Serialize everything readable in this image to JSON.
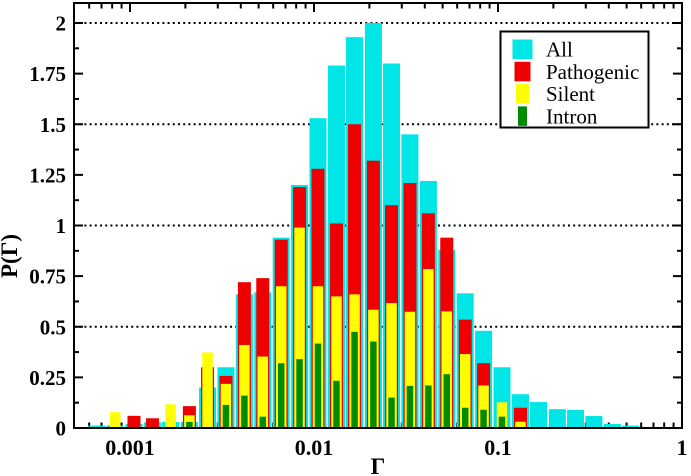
{
  "chart_data": {
    "type": "bar",
    "style": "overlaid-nested-histogram",
    "title": "",
    "xlabel": "Γ",
    "ylabel": "P(Γ)",
    "x_scale": "log",
    "xlim": [
      0.0005,
      1.05
    ],
    "ylim": [
      0,
      2.1
    ],
    "x_tick_values": [
      0.001,
      0.01,
      0.1,
      1
    ],
    "x_tick_labels": [
      "0.001",
      "0.01",
      "0.1",
      "1"
    ],
    "y_tick_values": [
      0,
      0.25,
      0.5,
      0.75,
      1,
      1.25,
      1.5,
      1.75,
      2
    ],
    "y_tick_labels": [
      "0",
      "0.25",
      "0.5",
      "0.75",
      "1",
      "1.25",
      "1.5",
      "1.75",
      "2"
    ],
    "gridlines_y": [
      0.5,
      1.0,
      1.5,
      2.0
    ],
    "grid_style": "dotted",
    "legend_position": "top-right",
    "x": [
      0.00063,
      0.00079,
      0.001,
      0.00126,
      0.00158,
      0.002,
      0.00251,
      0.00316,
      0.00398,
      0.00501,
      0.00631,
      0.00794,
      0.01,
      0.0126,
      0.0158,
      0.02,
      0.0251,
      0.0316,
      0.0398,
      0.0501,
      0.0631,
      0.0794,
      0.1,
      0.126,
      0.158,
      0.2,
      0.251,
      0.316,
      0.398,
      0.501
    ],
    "series": [
      {
        "name": "All",
        "color": "#00E5E5",
        "values": [
          0.012,
          0.013,
          0.02,
          0.028,
          0.03,
          0.03,
          0.2,
          0.3,
          0.66,
          0.67,
          0.94,
          1.2,
          1.53,
          1.79,
          1.93,
          2.0,
          1.8,
          1.45,
          1.22,
          0.88,
          0.665,
          0.48,
          0.3,
          0.167,
          0.128,
          0.093,
          0.089,
          0.059,
          0.02,
          0.012
        ]
      },
      {
        "name": "Pathogenic",
        "color": "#EE0000",
        "values": [
          0,
          0,
          0.06,
          0.048,
          0,
          0.108,
          0.3,
          0.257,
          0.72,
          0.74,
          0.93,
          1.19,
          1.28,
          1.01,
          1.5,
          1.32,
          1.1,
          1.21,
          1.06,
          0.94,
          0.535,
          0.32,
          0,
          0.1,
          0,
          0,
          0,
          0,
          0,
          0
        ]
      },
      {
        "name": "Silent",
        "color": "#FFFF00",
        "values": [
          0,
          0.078,
          0,
          0,
          0.117,
          0.063,
          0.373,
          0.218,
          0.41,
          0.353,
          0.7,
          0.99,
          0.7,
          0.65,
          0.66,
          0.584,
          0.617,
          0.574,
          0.785,
          0.576,
          0.365,
          0.21,
          0.127,
          0.031,
          0,
          0,
          0,
          0,
          0,
          0
        ]
      },
      {
        "name": "Intron",
        "color": "#008B00",
        "values": [
          0,
          0,
          0,
          0,
          0,
          0.03,
          0,
          0.114,
          0.16,
          0.056,
          0.32,
          0.34,
          0.417,
          0.233,
          0.475,
          0.427,
          0.15,
          0.208,
          0.21,
          0.266,
          0.1,
          0.09,
          0.056,
          0,
          0,
          0,
          0,
          0,
          0,
          0
        ]
      }
    ]
  },
  "legend": {
    "items": [
      {
        "label": "All",
        "color": "#00E5E5"
      },
      {
        "label": "Pathogenic",
        "color": "#EE0000"
      },
      {
        "label": "Silent",
        "color": "#FFFF00"
      },
      {
        "label": "Intron",
        "color": "#008B00"
      }
    ]
  }
}
